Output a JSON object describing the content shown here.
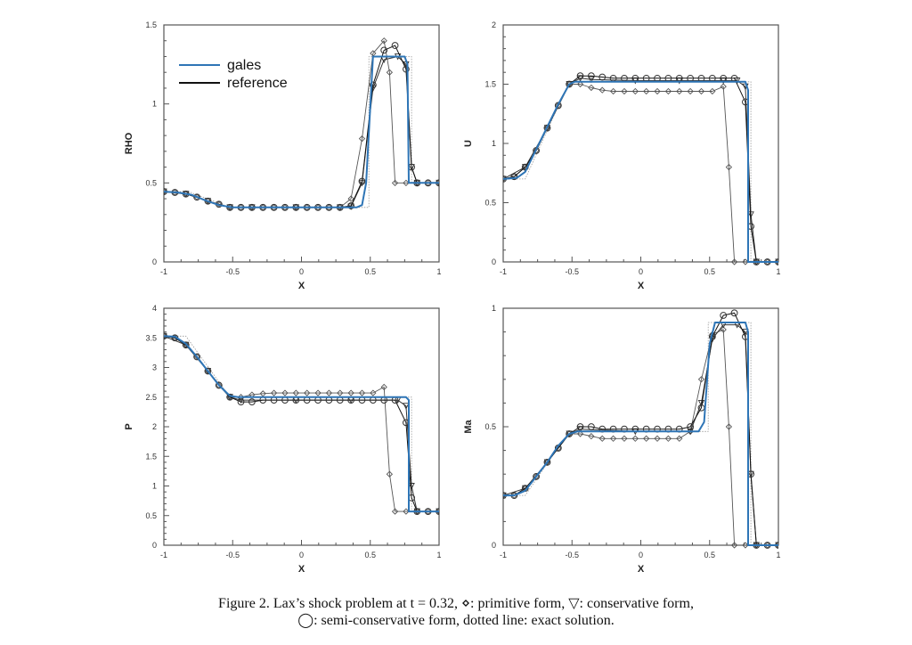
{
  "figure": {
    "caption_line1": "Figure 2. Lax’s shock problem at t = 0.32, ⋄: primitive form, ▽: conservative form,",
    "caption_line2": "◯: semi-conservative form, dotted line: exact solution."
  },
  "legend": {
    "entries": [
      {
        "label": "gales",
        "color": "#2e75b6"
      },
      {
        "label": "reference",
        "color": "#111111"
      }
    ]
  },
  "colors": {
    "gales": "#2e75b6",
    "reference": "#111111",
    "exact": "#999999",
    "markers": "#444444"
  },
  "chart_data": [
    {
      "type": "line",
      "title": "",
      "xlabel": "X",
      "ylabel": "RHO",
      "xlim": [
        -1,
        1
      ],
      "ylim": [
        0,
        1.5
      ],
      "xticks": [
        "-1",
        "-0.5",
        "0",
        "0.5",
        "1"
      ],
      "yticks": [
        "0",
        "0.5",
        "1",
        "1.5"
      ],
      "xtick_values": [
        -1,
        -0.5,
        0,
        0.5,
        1
      ],
      "ytick_values": [
        0,
        0.5,
        1,
        1.5
      ],
      "series": [
        {
          "name": "exact",
          "style": "dotted",
          "x": [
            -1,
            -0.82,
            -0.52,
            0.49,
            0.49,
            0.8,
            0.8,
            1
          ],
          "y": [
            0.445,
            0.445,
            0.345,
            0.345,
            1.3,
            1.3,
            0.5,
            0.5
          ]
        },
        {
          "name": "gales",
          "x": [
            -1,
            -0.9,
            -0.8,
            -0.7,
            -0.6,
            -0.5,
            -0.4,
            0.4,
            0.44,
            0.47,
            0.52,
            0.75,
            0.77,
            0.78,
            1
          ],
          "y": [
            0.445,
            0.44,
            0.425,
            0.39,
            0.36,
            0.345,
            0.345,
            0.345,
            0.36,
            0.5,
            1.3,
            1.3,
            1.25,
            0.5,
            0.5
          ]
        },
        {
          "name": "primitive",
          "marker": "diamond",
          "x": [
            -1,
            -0.92,
            -0.84,
            -0.76,
            -0.68,
            -0.6,
            -0.52,
            -0.44,
            -0.36,
            -0.28,
            -0.2,
            -0.12,
            -0.04,
            0.04,
            0.12,
            0.2,
            0.28,
            0.36,
            0.44,
            0.52,
            0.6,
            0.64,
            0.68,
            0.76,
            0.84,
            0.92,
            1
          ],
          "y": [
            0.445,
            0.44,
            0.43,
            0.41,
            0.385,
            0.365,
            0.345,
            0.345,
            0.345,
            0.345,
            0.345,
            0.345,
            0.345,
            0.345,
            0.345,
            0.345,
            0.345,
            0.4,
            0.78,
            1.32,
            1.4,
            1.2,
            0.5,
            0.5,
            0.5,
            0.5,
            0.5
          ]
        },
        {
          "name": "conservative",
          "marker": "triangle",
          "x": [
            -1,
            -0.84,
            -0.68,
            -0.52,
            -0.36,
            -0.04,
            0.28,
            0.36,
            0.44,
            0.52,
            0.6,
            0.7,
            0.76,
            0.8,
            0.84,
            1
          ],
          "y": [
            0.445,
            0.43,
            0.385,
            0.345,
            0.345,
            0.345,
            0.345,
            0.35,
            0.5,
            1.1,
            1.28,
            1.3,
            1.25,
            0.6,
            0.5,
            0.5
          ]
        },
        {
          "name": "semi-conservative",
          "marker": "circle",
          "x": [
            -1,
            -0.92,
            -0.84,
            -0.76,
            -0.68,
            -0.6,
            -0.52,
            -0.44,
            -0.36,
            -0.28,
            -0.2,
            -0.12,
            -0.04,
            0.04,
            0.12,
            0.2,
            0.28,
            0.36,
            0.44,
            0.52,
            0.6,
            0.68,
            0.76,
            0.8,
            0.84,
            0.92,
            1
          ],
          "y": [
            0.445,
            0.44,
            0.43,
            0.41,
            0.385,
            0.365,
            0.345,
            0.345,
            0.345,
            0.345,
            0.345,
            0.345,
            0.345,
            0.345,
            0.345,
            0.345,
            0.345,
            0.355,
            0.51,
            1.12,
            1.34,
            1.37,
            1.22,
            0.6,
            0.5,
            0.5,
            0.5
          ]
        }
      ]
    },
    {
      "type": "line",
      "title": "",
      "xlabel": "X",
      "ylabel": "U",
      "xlim": [
        -1,
        1
      ],
      "ylim": [
        0,
        2
      ],
      "xticks": [
        "-1",
        "-0.5",
        "0",
        "0.5",
        "1"
      ],
      "yticks": [
        "0",
        "0.5",
        "1",
        "1.5",
        "2"
      ],
      "xtick_values": [
        -1,
        -0.5,
        0,
        0.5,
        1
      ],
      "ytick_values": [
        0,
        0.5,
        1,
        1.5,
        2
      ],
      "series": [
        {
          "name": "exact",
          "style": "dotted",
          "x": [
            -1,
            -0.84,
            -0.52,
            0.8,
            0.8,
            1
          ],
          "y": [
            0.7,
            0.7,
            1.52,
            1.52,
            0,
            0
          ]
        },
        {
          "name": "gales",
          "x": [
            -1,
            -0.9,
            -0.84,
            -0.76,
            -0.68,
            -0.6,
            -0.52,
            -0.48,
            0.76,
            0.78,
            0.78,
            1
          ],
          "y": [
            0.7,
            0.71,
            0.76,
            0.95,
            1.14,
            1.33,
            1.5,
            1.52,
            1.52,
            1.45,
            0,
            0
          ]
        },
        {
          "name": "primitive",
          "marker": "diamond",
          "x": [
            -1,
            -0.92,
            -0.84,
            -0.76,
            -0.68,
            -0.6,
            -0.52,
            -0.44,
            -0.36,
            -0.28,
            -0.2,
            -0.12,
            -0.04,
            0.04,
            0.12,
            0.2,
            0.28,
            0.36,
            0.44,
            0.52,
            0.6,
            0.64,
            0.68,
            0.76,
            0.84,
            0.92,
            1
          ],
          "y": [
            0.7,
            0.72,
            0.8,
            0.94,
            1.13,
            1.32,
            1.5,
            1.5,
            1.47,
            1.45,
            1.44,
            1.44,
            1.44,
            1.44,
            1.44,
            1.44,
            1.44,
            1.44,
            1.44,
            1.44,
            1.48,
            0.8,
            0,
            0,
            0,
            0,
            0
          ]
        },
        {
          "name": "conservative",
          "marker": "triangle",
          "x": [
            -1,
            -0.84,
            -0.68,
            -0.52,
            -0.44,
            -0.36,
            -0.04,
            0.28,
            0.6,
            0.7,
            0.76,
            0.8,
            0.84,
            1
          ],
          "y": [
            0.7,
            0.8,
            1.13,
            1.5,
            1.55,
            1.54,
            1.53,
            1.53,
            1.53,
            1.53,
            1.48,
            0.4,
            0,
            0
          ]
        },
        {
          "name": "semi-conservative",
          "marker": "circle",
          "x": [
            -1,
            -0.92,
            -0.84,
            -0.76,
            -0.68,
            -0.6,
            -0.52,
            -0.44,
            -0.36,
            -0.28,
            -0.2,
            -0.12,
            -0.04,
            0.04,
            0.12,
            0.2,
            0.28,
            0.36,
            0.44,
            0.52,
            0.6,
            0.68,
            0.76,
            0.8,
            0.84,
            0.92,
            1
          ],
          "y": [
            0.7,
            0.72,
            0.8,
            0.94,
            1.13,
            1.32,
            1.5,
            1.57,
            1.57,
            1.56,
            1.55,
            1.55,
            1.55,
            1.55,
            1.55,
            1.55,
            1.55,
            1.55,
            1.55,
            1.55,
            1.55,
            1.55,
            1.35,
            0.3,
            0,
            0,
            0
          ]
        }
      ]
    },
    {
      "type": "line",
      "title": "",
      "xlabel": "X",
      "ylabel": "P",
      "xlim": [
        -1,
        1
      ],
      "ylim": [
        0,
        4
      ],
      "xticks": [
        "-1",
        "-0.5",
        "0",
        "0.5",
        "1"
      ],
      "yticks": [
        "0",
        "0.5",
        "1",
        "1.5",
        "2",
        "2.5",
        "3",
        "3.5",
        "4"
      ],
      "xtick_values": [
        -1,
        -0.5,
        0,
        0.5,
        1
      ],
      "ytick_values": [
        0,
        0.5,
        1,
        1.5,
        2,
        2.5,
        3,
        3.5,
        4
      ],
      "series": [
        {
          "name": "exact",
          "style": "dotted",
          "x": [
            -1,
            -0.84,
            -0.52,
            0.8,
            0.8,
            1
          ],
          "y": [
            3.53,
            3.53,
            2.5,
            2.5,
            0.57,
            0.57
          ]
        },
        {
          "name": "gales",
          "x": [
            -1,
            -0.92,
            -0.84,
            -0.76,
            -0.68,
            -0.6,
            -0.52,
            -0.46,
            0.76,
            0.78,
            0.78,
            1
          ],
          "y": [
            3.53,
            3.52,
            3.4,
            3.18,
            2.94,
            2.7,
            2.52,
            2.5,
            2.5,
            2.45,
            0.57,
            0.57
          ]
        },
        {
          "name": "primitive",
          "marker": "diamond",
          "x": [
            -1,
            -0.92,
            -0.84,
            -0.76,
            -0.68,
            -0.6,
            -0.52,
            -0.44,
            -0.36,
            -0.28,
            -0.2,
            -0.12,
            -0.04,
            0.04,
            0.12,
            0.2,
            0.28,
            0.36,
            0.44,
            0.52,
            0.6,
            0.64,
            0.68,
            0.76,
            0.84,
            0.92,
            1
          ],
          "y": [
            3.53,
            3.5,
            3.38,
            3.18,
            2.94,
            2.7,
            2.5,
            2.5,
            2.54,
            2.56,
            2.57,
            2.57,
            2.57,
            2.57,
            2.57,
            2.57,
            2.57,
            2.57,
            2.57,
            2.57,
            2.67,
            1.2,
            0.57,
            0.57,
            0.57,
            0.57,
            0.57
          ]
        },
        {
          "name": "conservative",
          "marker": "triangle",
          "x": [
            -1,
            -0.84,
            -0.68,
            -0.52,
            -0.44,
            -0.04,
            0.36,
            0.7,
            0.76,
            0.8,
            0.84,
            1
          ],
          "y": [
            3.53,
            3.38,
            2.94,
            2.5,
            2.45,
            2.45,
            2.45,
            2.45,
            2.35,
            1.0,
            0.57,
            0.57
          ]
        },
        {
          "name": "semi-conservative",
          "marker": "circle",
          "x": [
            -1,
            -0.92,
            -0.84,
            -0.76,
            -0.68,
            -0.6,
            -0.52,
            -0.44,
            -0.36,
            -0.28,
            -0.2,
            -0.12,
            -0.04,
            0.04,
            0.12,
            0.2,
            0.28,
            0.36,
            0.44,
            0.52,
            0.6,
            0.68,
            0.76,
            0.8,
            0.84,
            0.92,
            1
          ],
          "y": [
            3.53,
            3.5,
            3.38,
            3.18,
            2.94,
            2.7,
            2.5,
            2.42,
            2.42,
            2.45,
            2.45,
            2.45,
            2.45,
            2.45,
            2.45,
            2.45,
            2.45,
            2.45,
            2.45,
            2.45,
            2.45,
            2.45,
            2.07,
            0.8,
            0.57,
            0.57,
            0.57
          ]
        }
      ]
    },
    {
      "type": "line",
      "title": "",
      "xlabel": "X",
      "ylabel": "Ma",
      "xlim": [
        -1,
        1
      ],
      "ylim": [
        0,
        1
      ],
      "xticks": [
        "-1",
        "-0.5",
        "0",
        "0.5",
        "1"
      ],
      "yticks": [
        "0",
        "0.5",
        "1"
      ],
      "xtick_values": [
        -1,
        -0.5,
        0,
        0.5,
        1
      ],
      "ytick_values": [
        0,
        0.5,
        1
      ],
      "series": [
        {
          "name": "exact",
          "style": "dotted",
          "x": [
            -1,
            -0.84,
            -0.52,
            0.49,
            0.49,
            0.8,
            0.8,
            1
          ],
          "y": [
            0.21,
            0.21,
            0.48,
            0.48,
            0.94,
            0.94,
            0,
            0
          ]
        },
        {
          "name": "gales",
          "x": [
            -1,
            -0.92,
            -0.84,
            -0.76,
            -0.68,
            -0.6,
            -0.52,
            -0.46,
            0.42,
            0.46,
            0.5,
            0.54,
            0.76,
            0.78,
            0.78,
            1
          ],
          "y": [
            0.21,
            0.21,
            0.23,
            0.29,
            0.35,
            0.42,
            0.47,
            0.48,
            0.48,
            0.52,
            0.85,
            0.94,
            0.94,
            0.9,
            0,
            0
          ]
        },
        {
          "name": "primitive",
          "marker": "diamond",
          "x": [
            -1,
            -0.92,
            -0.84,
            -0.76,
            -0.68,
            -0.6,
            -0.52,
            -0.44,
            -0.36,
            -0.28,
            -0.2,
            -0.12,
            -0.04,
            0.04,
            0.12,
            0.2,
            0.28,
            0.36,
            0.44,
            0.52,
            0.6,
            0.64,
            0.68,
            0.76,
            0.84,
            0.92,
            1
          ],
          "y": [
            0.21,
            0.21,
            0.24,
            0.29,
            0.35,
            0.41,
            0.47,
            0.47,
            0.46,
            0.45,
            0.45,
            0.45,
            0.45,
            0.45,
            0.45,
            0.45,
            0.45,
            0.48,
            0.7,
            0.89,
            0.91,
            0.5,
            0,
            0,
            0,
            0,
            0
          ]
        },
        {
          "name": "conservative",
          "marker": "triangle",
          "x": [
            -1,
            -0.84,
            -0.68,
            -0.52,
            -0.44,
            -0.04,
            0.36,
            0.44,
            0.52,
            0.6,
            0.7,
            0.76,
            0.8,
            0.84,
            1
          ],
          "y": [
            0.21,
            0.24,
            0.35,
            0.47,
            0.49,
            0.48,
            0.48,
            0.6,
            0.87,
            0.93,
            0.93,
            0.9,
            0.3,
            0,
            0
          ]
        },
        {
          "name": "semi-conservative",
          "marker": "circle",
          "x": [
            -1,
            -0.92,
            -0.84,
            -0.76,
            -0.68,
            -0.6,
            -0.52,
            -0.44,
            -0.36,
            -0.28,
            -0.2,
            -0.12,
            -0.04,
            0.04,
            0.12,
            0.2,
            0.28,
            0.36,
            0.44,
            0.52,
            0.6,
            0.68,
            0.76,
            0.8,
            0.84,
            0.92,
            1
          ],
          "y": [
            0.21,
            0.21,
            0.24,
            0.29,
            0.35,
            0.41,
            0.47,
            0.5,
            0.5,
            0.49,
            0.49,
            0.49,
            0.49,
            0.49,
            0.49,
            0.49,
            0.49,
            0.5,
            0.58,
            0.88,
            0.97,
            0.98,
            0.88,
            0.3,
            0,
            0,
            0
          ]
        }
      ]
    }
  ]
}
